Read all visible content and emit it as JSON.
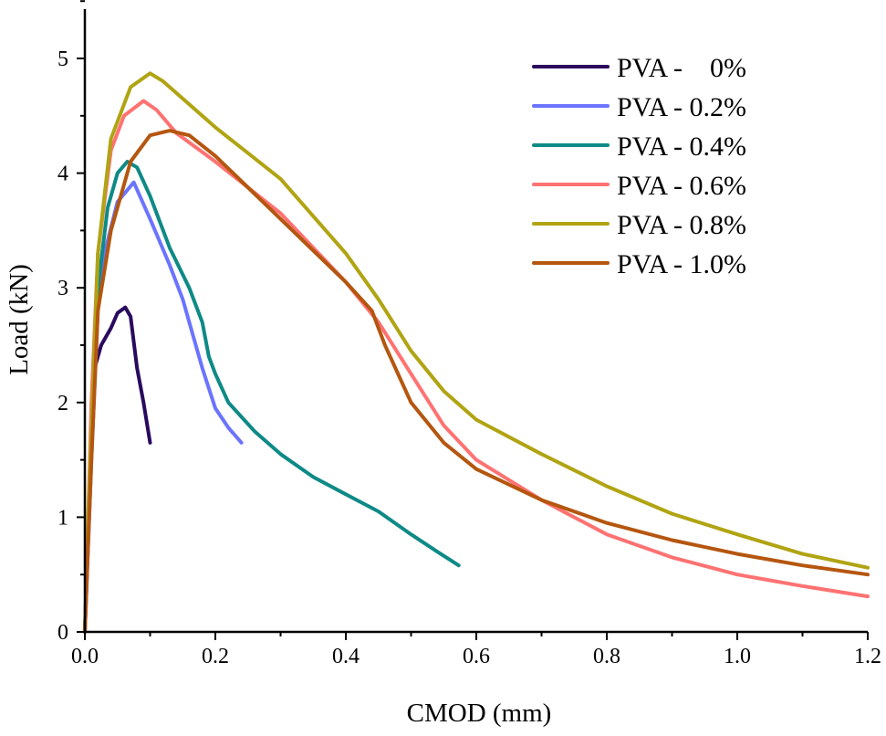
{
  "chart_data": {
    "type": "line",
    "title": "",
    "xlabel": "CMOD (mm)",
    "ylabel": "Load (kN)",
    "xlim": [
      0,
      1.2
    ],
    "ylim": [
      0,
      5.43
    ],
    "xticks": [
      "0.0",
      "0.2",
      "0.4",
      "0.6",
      "0.8",
      "1.0",
      "1.2"
    ],
    "yticks": [
      "0",
      "1",
      "2",
      "3",
      "4",
      "5"
    ],
    "grid": false,
    "legend_position": "top-right",
    "series": [
      {
        "name": "PVA -    0%",
        "color": "#2a0a5e",
        "x": [
          0,
          0.005,
          0.01,
          0.015,
          0.025,
          0.04,
          0.05,
          0.062,
          0.07,
          0.08,
          0.09,
          0.1
        ],
        "y": [
          0,
          0.8,
          1.8,
          2.3,
          2.5,
          2.65,
          2.78,
          2.83,
          2.75,
          2.3,
          2.0,
          1.65
        ]
      },
      {
        "name": "PVA - 0.2%",
        "color": "#6b74ff",
        "x": [
          0,
          0.01,
          0.02,
          0.03,
          0.05,
          0.075,
          0.1,
          0.13,
          0.15,
          0.18,
          0.2,
          0.22,
          0.24
        ],
        "y": [
          0,
          1.5,
          2.8,
          3.3,
          3.75,
          3.92,
          3.6,
          3.2,
          2.9,
          2.3,
          1.95,
          1.78,
          1.65
        ]
      },
      {
        "name": "PVA - 0.4%",
        "color": "#0e8a86",
        "x": [
          0,
          0.01,
          0.02,
          0.035,
          0.05,
          0.065,
          0.08,
          0.1,
          0.13,
          0.16,
          0.18,
          0.19,
          0.2,
          0.22,
          0.26,
          0.3,
          0.35,
          0.4,
          0.45,
          0.5,
          0.54,
          0.573
        ],
        "y": [
          0,
          1.8,
          3.0,
          3.7,
          4.0,
          4.1,
          4.05,
          3.8,
          3.35,
          3.0,
          2.7,
          2.4,
          2.25,
          2.0,
          1.75,
          1.55,
          1.35,
          1.2,
          1.05,
          0.85,
          0.7,
          0.58
        ]
      },
      {
        "name": "PVA - 0.6%",
        "color": "#ff7272",
        "x": [
          0,
          0.01,
          0.02,
          0.04,
          0.06,
          0.09,
          0.11,
          0.14,
          0.2,
          0.3,
          0.4,
          0.45,
          0.5,
          0.55,
          0.6,
          0.7,
          0.8,
          0.9,
          1.0,
          1.1,
          1.2
        ],
        "y": [
          0,
          2.0,
          3.3,
          4.2,
          4.5,
          4.63,
          4.55,
          4.35,
          4.1,
          3.65,
          3.05,
          2.7,
          2.25,
          1.8,
          1.5,
          1.15,
          0.85,
          0.65,
          0.5,
          0.4,
          0.31
        ]
      },
      {
        "name": "PVA - 0.8%",
        "color": "#b0a413",
        "x": [
          0,
          0.005,
          0.02,
          0.04,
          0.07,
          0.1,
          0.12,
          0.2,
          0.3,
          0.4,
          0.45,
          0.5,
          0.55,
          0.6,
          0.7,
          0.8,
          0.9,
          1.0,
          1.1,
          1.2
        ],
        "y": [
          0,
          1.0,
          3.3,
          4.3,
          4.75,
          4.87,
          4.8,
          4.4,
          3.95,
          3.3,
          2.9,
          2.45,
          2.1,
          1.85,
          1.55,
          1.27,
          1.03,
          0.85,
          0.68,
          0.56
        ]
      },
      {
        "name": "PVA - 1.0%",
        "color": "#b5560f",
        "x": [
          0,
          0.01,
          0.02,
          0.04,
          0.07,
          0.1,
          0.13,
          0.16,
          0.2,
          0.3,
          0.4,
          0.44,
          0.46,
          0.5,
          0.55,
          0.6,
          0.7,
          0.8,
          0.9,
          1.0,
          1.1,
          1.2
        ],
        "y": [
          0,
          1.5,
          2.8,
          3.5,
          4.1,
          4.33,
          4.37,
          4.33,
          4.15,
          3.6,
          3.05,
          2.8,
          2.5,
          2.0,
          1.65,
          1.42,
          1.15,
          0.95,
          0.8,
          0.68,
          0.58,
          0.5
        ]
      }
    ]
  }
}
